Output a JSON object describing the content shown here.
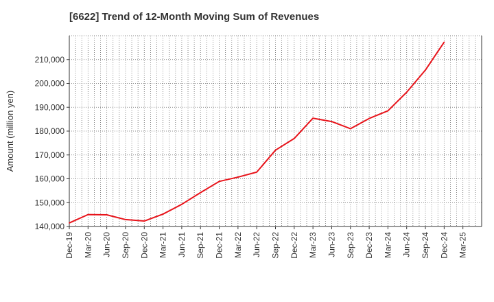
{
  "chart_data": {
    "type": "line",
    "title": "[6622]  Trend of 12-Month Moving Sum of Revenues",
    "xlabel": "",
    "ylabel": "Amount (million yen)",
    "x": [
      "Dec-19",
      "Mar-20",
      "Jun-20",
      "Sep-20",
      "Dec-20",
      "Mar-21",
      "Jun-21",
      "Sep-21",
      "Dec-21",
      "Mar-22",
      "Jun-22",
      "Sep-22",
      "Dec-22",
      "Mar-23",
      "Jun-23",
      "Sep-23",
      "Dec-23",
      "Mar-24",
      "Jun-24",
      "Sep-24",
      "Dec-24",
      "Mar-25"
    ],
    "ylim": [
      140000,
      220000
    ],
    "yticks": [
      140000,
      150000,
      160000,
      170000,
      180000,
      190000,
      200000,
      210000
    ],
    "ytick_labels": [
      "140,000",
      "150,000",
      "160,000",
      "170,000",
      "180,000",
      "190,000",
      "200,000",
      "210,000"
    ],
    "grid": true,
    "series": [
      {
        "color": "#e8141b",
        "values": [
          141500,
          145000,
          144900,
          142900,
          142300,
          145200,
          149300,
          154200,
          158900,
          160700,
          162800,
          172000,
          176900,
          185400,
          184000,
          181000,
          185300,
          188500,
          196300,
          205600,
          217300,
          null
        ]
      }
    ]
  }
}
